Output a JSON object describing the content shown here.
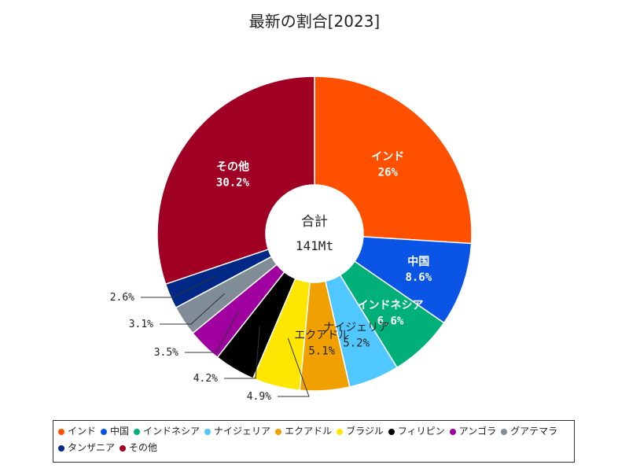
{
  "chart_data": {
    "type": "pie",
    "style": "donut",
    "title": "最新の割合[2023]",
    "center_label": "合計",
    "center_value": "141Mt",
    "legend_position": "bottom",
    "slices": [
      {
        "name": "インド",
        "value": 26,
        "label": "26%",
        "color": "#ff5000"
      },
      {
        "name": "中国",
        "value": 8.6,
        "label": "8.6%",
        "color": "#0a55e6"
      },
      {
        "name": "インドネシア",
        "value": 6.6,
        "label": "6.6%",
        "color": "#00b078"
      },
      {
        "name": "ナイジェリア",
        "value": 5.2,
        "label": "5.2%",
        "color": "#50c8ff"
      },
      {
        "name": "エクアドル",
        "value": 5.1,
        "label": "5.1%",
        "color": "#f0a000"
      },
      {
        "name": "ブラジル",
        "value": 4.9,
        "label": "4.9%",
        "color": "#ffe600"
      },
      {
        "name": "フィリピン",
        "value": 4.2,
        "label": "4.2%",
        "color": "#000000"
      },
      {
        "name": "アンゴラ",
        "value": 3.5,
        "label": "3.5%",
        "color": "#a000a0"
      },
      {
        "name": "グアテマラ",
        "value": 3.1,
        "label": "3.1%",
        "color": "#808c96"
      },
      {
        "name": "タンザニア",
        "value": 2.6,
        "label": "2.6%",
        "color": "#002887"
      },
      {
        "name": "その他",
        "value": 30.2,
        "label": "30.2%",
        "color": "#a00023"
      }
    ]
  }
}
